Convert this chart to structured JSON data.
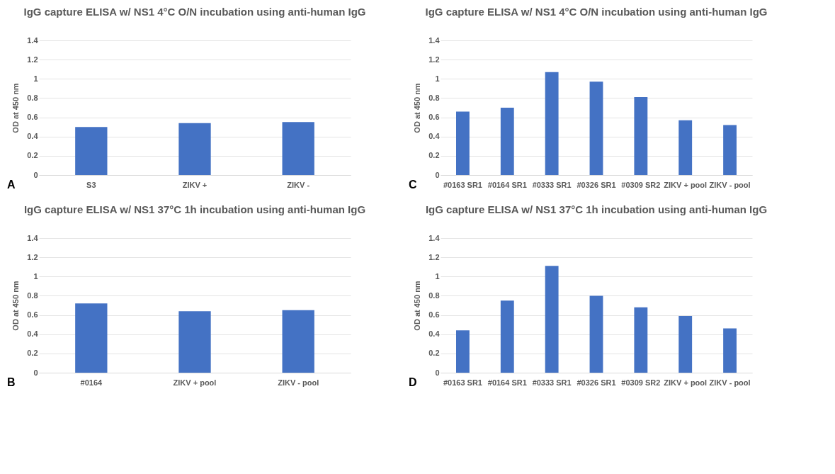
{
  "chart_data": [
    {
      "type": "bar",
      "title": "IgG capture ELISA w/ NS1 4°C O/N incubation using anti-human IgG",
      "ylabel": "OD at 450 nm",
      "categories": [
        "S3",
        "ZIKV +",
        "ZIKV -"
      ],
      "values": [
        0.5,
        0.54,
        0.55
      ],
      "color": "#4472c4",
      "ylim": [
        0,
        1.4
      ],
      "yticks": [
        0,
        0.2,
        0.4,
        0.6,
        0.8,
        1,
        1.2,
        1.4
      ],
      "grid": "y",
      "annotations": [
        "A"
      ]
    },
    {
      "type": "bar",
      "title": "IgG capture ELISA w/ NS1 4°C O/N incubation using anti-human IgG",
      "ylabel": "OD at 450 nm",
      "categories": [
        "#0163 SR1",
        "#0164 SR1",
        "#0333 SR1",
        "#0326 SR1",
        "#0309 SR2",
        "ZIKV + pool",
        "ZIKV - pool"
      ],
      "values": [
        0.66,
        0.7,
        1.07,
        0.97,
        0.81,
        0.57,
        0.52
      ],
      "color": "#4472c4",
      "ylim": [
        0,
        1.4
      ],
      "yticks": [
        0,
        0.2,
        0.4,
        0.6,
        0.8,
        1,
        1.2,
        1.4
      ],
      "grid": "y",
      "annotations": [
        "C"
      ]
    },
    {
      "type": "bar",
      "title": "IgG capture ELISA w/ NS1 37°C 1h incubation using anti-human IgG",
      "ylabel": "OD at 450 nm",
      "categories": [
        "#0164",
        "ZIKV + pool",
        "ZIKV - pool"
      ],
      "values": [
        0.72,
        0.64,
        0.65
      ],
      "color": "#4472c4",
      "ylim": [
        0,
        1.4
      ],
      "yticks": [
        0,
        0.2,
        0.4,
        0.6,
        0.8,
        1,
        1.2,
        1.4
      ],
      "grid": "y",
      "annotations": [
        "B"
      ]
    },
    {
      "type": "bar",
      "title": "IgG capture ELISA w/ NS1 37°C 1h incubation using anti-human IgG",
      "ylabel": "OD at 450 nm",
      "categories": [
        "#0163 SR1",
        "#0164 SR1",
        "#0333 SR1",
        "#0326 SR1",
        "#0309 SR2",
        "ZIKV + pool",
        "ZIKV - pool"
      ],
      "values": [
        0.44,
        0.75,
        1.11,
        0.8,
        0.68,
        0.59,
        0.46
      ],
      "color": "#4472c4",
      "ylim": [
        0,
        1.4
      ],
      "yticks": [
        0,
        0.2,
        0.4,
        0.6,
        0.8,
        1,
        1.2,
        1.4
      ],
      "grid": "y",
      "annotations": [
        "D"
      ]
    }
  ]
}
